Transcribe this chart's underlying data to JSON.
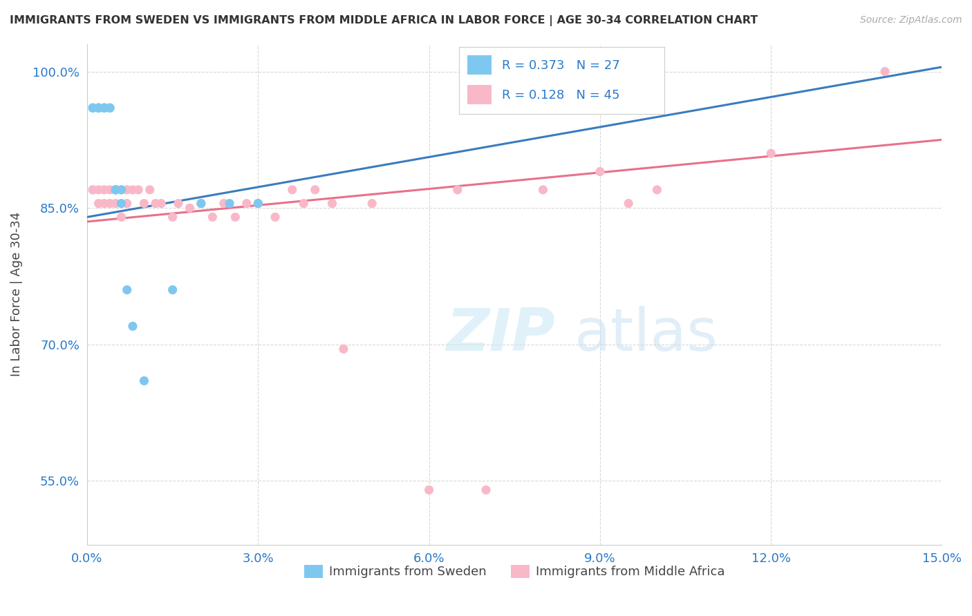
{
  "title": "IMMIGRANTS FROM SWEDEN VS IMMIGRANTS FROM MIDDLE AFRICA IN LABOR FORCE | AGE 30-34 CORRELATION CHART",
  "source": "Source: ZipAtlas.com",
  "ylabel": "In Labor Force | Age 30-34",
  "xlim": [
    0.0,
    0.15
  ],
  "ylim": [
    0.48,
    1.03
  ],
  "xticks": [
    0.0,
    0.03,
    0.06,
    0.09,
    0.12,
    0.15
  ],
  "yticks": [
    0.55,
    0.7,
    0.85,
    1.0
  ],
  "ytick_labels": [
    "55.0%",
    "70.0%",
    "85.0%",
    "100.0%"
  ],
  "xtick_labels": [
    "0.0%",
    "3.0%",
    "6.0%",
    "9.0%",
    "12.0%",
    "15.0%"
  ],
  "legend_x_labels": [
    "Immigrants from Sweden",
    "Immigrants from Middle Africa"
  ],
  "sweden_R": 0.373,
  "sweden_N": 27,
  "africa_R": 0.128,
  "africa_N": 45,
  "sweden_color": "#7ec8f0",
  "africa_color": "#f9b8c8",
  "sweden_line_color": "#3a7bbf",
  "africa_line_color": "#e8708a",
  "sweden_x": [
    0.001,
    0.001,
    0.001,
    0.002,
    0.002,
    0.002,
    0.002,
    0.002,
    0.003,
    0.003,
    0.003,
    0.003,
    0.004,
    0.004,
    0.004,
    0.005,
    0.005,
    0.005,
    0.006,
    0.006,
    0.007,
    0.008,
    0.01,
    0.015,
    0.02,
    0.025,
    0.03
  ],
  "sweden_y": [
    0.96,
    0.96,
    0.96,
    0.96,
    0.96,
    0.96,
    0.96,
    0.96,
    0.96,
    0.96,
    0.96,
    0.96,
    0.96,
    0.96,
    0.96,
    0.87,
    0.87,
    0.87,
    0.87,
    0.855,
    0.76,
    0.72,
    0.66,
    0.76,
    0.855,
    0.855,
    0.855
  ],
  "africa_x": [
    0.001,
    0.001,
    0.002,
    0.002,
    0.003,
    0.003,
    0.004,
    0.004,
    0.005,
    0.005,
    0.006,
    0.006,
    0.007,
    0.007,
    0.008,
    0.009,
    0.01,
    0.011,
    0.012,
    0.013,
    0.015,
    0.016,
    0.018,
    0.02,
    0.022,
    0.024,
    0.026,
    0.028,
    0.03,
    0.033,
    0.036,
    0.038,
    0.04,
    0.043,
    0.045,
    0.05,
    0.06,
    0.065,
    0.07,
    0.08,
    0.09,
    0.095,
    0.1,
    0.12,
    0.14
  ],
  "africa_y": [
    0.87,
    0.87,
    0.87,
    0.855,
    0.87,
    0.855,
    0.87,
    0.855,
    0.87,
    0.855,
    0.87,
    0.84,
    0.87,
    0.855,
    0.87,
    0.87,
    0.855,
    0.87,
    0.855,
    0.855,
    0.84,
    0.855,
    0.85,
    0.855,
    0.84,
    0.855,
    0.84,
    0.855,
    0.855,
    0.84,
    0.87,
    0.855,
    0.87,
    0.855,
    0.695,
    0.855,
    0.54,
    0.87,
    0.54,
    0.87,
    0.89,
    0.855,
    0.87,
    0.91,
    1.0
  ]
}
